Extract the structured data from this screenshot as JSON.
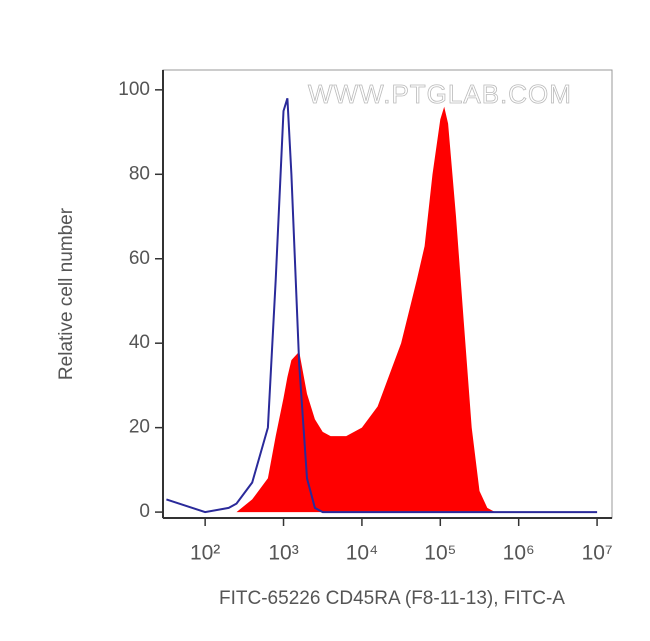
{
  "chart_data": {
    "type": "histogram-overlay",
    "xlabel": "FITC-65226 CD45RA (F8-11-13), FITC-A",
    "ylabel": "Relative cell number",
    "annotation": "WWW.PTGLAB.COM",
    "xscale": "log",
    "x": [
      32,
      100,
      200,
      251,
      398,
      631,
      794,
      1000,
      1122,
      1259,
      1585,
      1995,
      2512,
      3162,
      3981,
      6310,
      10000,
      15849,
      31623,
      50119,
      63096,
      79433,
      100000,
      112202,
      125893,
      158489,
      199526,
      251189,
      316228,
      398107,
      501187,
      10000000
    ],
    "series": [
      {
        "style": "area",
        "color": "#ff0000",
        "values": [
          0,
          0,
          0,
          0,
          3,
          8,
          18,
          27,
          32,
          36,
          38,
          28,
          22,
          19,
          18,
          18,
          20,
          25,
          40,
          55,
          63,
          80,
          93,
          96,
          92,
          70,
          45,
          20,
          5,
          1,
          0,
          0
        ]
      },
      {
        "style": "line",
        "color": "#2a2a9a",
        "values": [
          3,
          0,
          1,
          2,
          7,
          20,
          55,
          95,
          98,
          80,
          35,
          8,
          1,
          0,
          0,
          0,
          0,
          0,
          0,
          0,
          0,
          0,
          0,
          0,
          0,
          0,
          0,
          0,
          0,
          0,
          0,
          0
        ]
      }
    ],
    "xlim": [
      29,
      15500000
    ],
    "xticks": [
      {
        "value": 100,
        "label": "10²"
      },
      {
        "value": 1000,
        "label": "10³"
      },
      {
        "value": 10000,
        "label": "10⁴"
      },
      {
        "value": 100000,
        "label": "10⁵"
      },
      {
        "value": 1000000,
        "label": "10⁶"
      },
      {
        "value": 10000000,
        "label": "10⁷"
      }
    ],
    "ylim": [
      -1.4,
      104.7
    ],
    "yticks": [
      0,
      20,
      40,
      60,
      80,
      100
    ]
  }
}
